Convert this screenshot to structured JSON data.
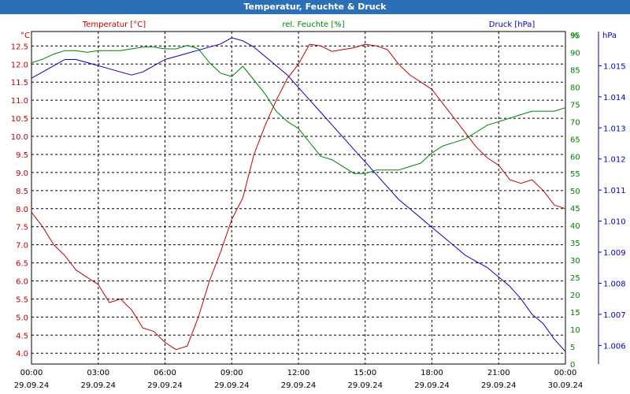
{
  "window": {
    "title": "Temperatur, Feuchte & Druck"
  },
  "colors": {
    "temperature": "#c00000",
    "humidity": "#008000",
    "pressure": "#0000c0",
    "title_bar": "#2b6fb6"
  },
  "chart_data": {
    "type": "line",
    "title": "Temperatur, Feuchte & Druck",
    "grid": true,
    "x_ticks": [
      {
        "time": "00:00",
        "date": "29.09.24"
      },
      {
        "time": "03:00",
        "date": "29.09.24"
      },
      {
        "time": "06:00",
        "date": "29.09.24"
      },
      {
        "time": "09:00",
        "date": "29.09.24"
      },
      {
        "time": "12:00",
        "date": "29.09.24"
      },
      {
        "time": "15:00",
        "date": "29.09.24"
      },
      {
        "time": "18:00",
        "date": "29.09.24"
      },
      {
        "time": "21:00",
        "date": "29.09.24"
      },
      {
        "time": "00:00",
        "date": "30.09.24"
      }
    ],
    "x_unit": "hours",
    "xlim": [
      0,
      24
    ],
    "axes": {
      "temperature": {
        "label": "Temperatur [°C]",
        "unit": "°C",
        "ylim": [
          3.7,
          12.9
        ],
        "ticks": [
          "4.0",
          "4.5",
          "5.0",
          "5.5",
          "6.0",
          "6.5",
          "7.0",
          "7.5",
          "8.0",
          "8.5",
          "9.0",
          "9.5",
          "10.0",
          "10.5",
          "11.0",
          "11.5",
          "12.0",
          "12.5"
        ]
      },
      "humidity": {
        "label": "rel. Feuchte [%]",
        "unit": "%",
        "ylim": [
          0,
          96
        ],
        "ticks": [
          "0",
          "5",
          "10",
          "15",
          "20",
          "25",
          "30",
          "35",
          "40",
          "45",
          "50",
          "55",
          "60",
          "65",
          "70",
          "75",
          "80",
          "85",
          "90",
          "95"
        ]
      },
      "pressure": {
        "label": "Druck [hPa]",
        "unit": "hPa",
        "ylim": [
          1.0054,
          1.0161
        ],
        "ticks": [
          "1.006",
          "1.007",
          "1.008",
          "1.009",
          "1.010",
          "1.011",
          "1.012",
          "1.013",
          "1.014",
          "1.015"
        ]
      }
    },
    "series": [
      {
        "name": "Temperatur [°C]",
        "axis": "temperature",
        "x": [
          0,
          0.5,
          1,
          1.5,
          2,
          2.5,
          3,
          3.5,
          4,
          4.5,
          5,
          5.5,
          6,
          6.5,
          7,
          7.5,
          8,
          8.5,
          9,
          9.5,
          10,
          10.5,
          11,
          11.5,
          12,
          12.5,
          13,
          13.5,
          14,
          14.5,
          15,
          15.5,
          16,
          16.5,
          17,
          17.5,
          18,
          18.5,
          19,
          19.5,
          20,
          20.5,
          21,
          21.5,
          22,
          22.5,
          23,
          23.5,
          24
        ],
        "y": [
          7.9,
          7.5,
          7.0,
          6.7,
          6.3,
          6.1,
          5.9,
          5.4,
          5.5,
          5.2,
          4.7,
          4.6,
          4.3,
          4.1,
          4.2,
          5.0,
          6.0,
          6.8,
          7.7,
          8.3,
          9.5,
          10.3,
          11.0,
          11.6,
          12.0,
          12.55,
          12.5,
          12.35,
          12.4,
          12.45,
          12.55,
          12.5,
          12.4,
          12.0,
          11.7,
          11.5,
          11.3,
          10.9,
          10.5,
          10.1,
          9.7,
          9.4,
          9.2,
          8.8,
          8.7,
          8.8,
          8.5,
          8.1,
          8.0
        ]
      },
      {
        "name": "rel. Feuchte [%]",
        "axis": "humidity",
        "x": [
          0,
          0.5,
          1,
          1.5,
          2,
          2.5,
          3,
          3.5,
          4,
          4.5,
          5,
          5.5,
          6,
          6.5,
          7,
          7.5,
          8,
          8.5,
          9,
          9.5,
          10,
          10.5,
          11,
          11.5,
          12,
          12.5,
          13,
          13.5,
          14,
          14.5,
          15,
          15.5,
          16,
          16.5,
          17,
          17.5,
          18,
          18.5,
          19,
          19.5,
          20,
          20.5,
          21,
          21.5,
          22,
          22.5,
          23,
          23.5,
          24
        ],
        "y": [
          87,
          88,
          89.5,
          90.5,
          90.5,
          90,
          90.5,
          90.5,
          90.5,
          91,
          91.5,
          91.5,
          91,
          91,
          92,
          91,
          87,
          84,
          83,
          86,
          82,
          78,
          73,
          70,
          68,
          64,
          60,
          59,
          57,
          55,
          55,
          56,
          56,
          56,
          57,
          58,
          61,
          63,
          64,
          65,
          67,
          69,
          70,
          71,
          72,
          73,
          73,
          73,
          74
        ]
      },
      {
        "name": "Druck [hPa]",
        "axis": "pressure",
        "x": [
          0,
          0.5,
          1,
          1.5,
          2,
          2.5,
          3,
          3.5,
          4,
          4.5,
          5,
          5.5,
          6,
          6.5,
          7,
          7.5,
          8,
          8.5,
          9,
          9.5,
          10,
          10.5,
          11,
          11.5,
          12,
          12.5,
          13,
          13.5,
          14,
          14.5,
          15,
          15.5,
          16,
          16.5,
          17,
          17.5,
          18,
          18.5,
          19,
          19.5,
          20,
          20.5,
          21,
          21.5,
          22,
          22.5,
          23,
          23.5,
          24
        ],
        "y": [
          1.0146,
          1.0148,
          1.015,
          1.0152,
          1.0152,
          1.0151,
          1.015,
          1.0149,
          1.0148,
          1.0147,
          1.0148,
          1.015,
          1.0152,
          1.0153,
          1.0154,
          1.0155,
          1.0156,
          1.0157,
          1.0159,
          1.0158,
          1.0156,
          1.0153,
          1.015,
          1.0147,
          1.0143,
          1.0139,
          1.0135,
          1.0131,
          1.0127,
          1.0123,
          1.0119,
          1.0115,
          1.0111,
          1.0107,
          1.0104,
          1.0101,
          1.0098,
          1.0095,
          1.0092,
          1.0089,
          1.0087,
          1.0085,
          1.0082,
          1.0079,
          1.0075,
          1.007,
          1.0067,
          1.0062,
          1.0058
        ]
      }
    ]
  }
}
